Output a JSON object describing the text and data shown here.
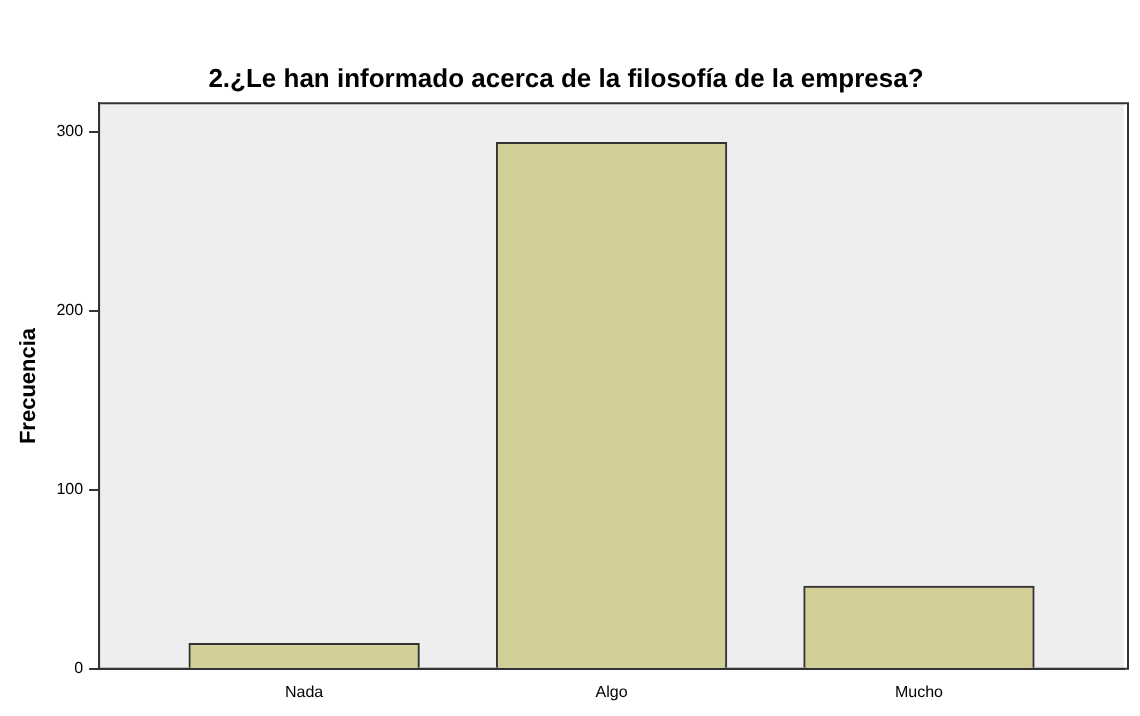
{
  "chart_data": {
    "type": "bar",
    "title": "2.¿Le han informado acerca de la filosofía de la empresa?",
    "ylabel": "Frecuencia",
    "categories": [
      "Nada",
      "Algo",
      "Mucho"
    ],
    "values": [
      14,
      294,
      46
    ],
    "color": "#d2cf98",
    "ylim": [
      0,
      316
    ],
    "yticks": [
      0,
      100,
      200,
      300
    ],
    "grid": false,
    "legend": false
  }
}
